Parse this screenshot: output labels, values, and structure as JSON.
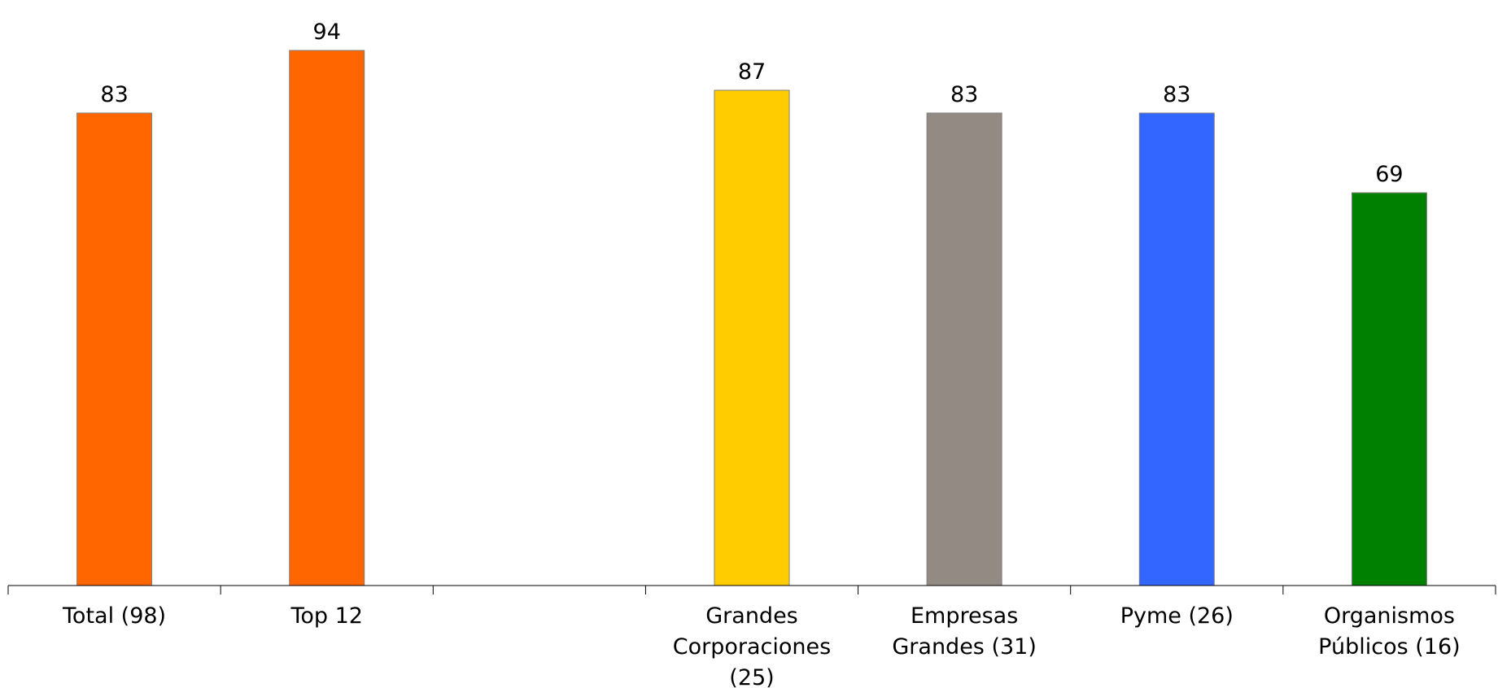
{
  "chart_data": {
    "type": "bar",
    "categories": [
      "Total  (98)",
      "Top 12",
      "",
      "Grandes Corporaciones (25)",
      "Empresas Grandes (31)",
      "Pyme (26)",
      "Organismos Públicos (16)"
    ],
    "category_lines": [
      [
        "Total  (98)"
      ],
      [
        "Top 12"
      ],
      [],
      [
        "Grandes",
        "Corporaciones",
        "(25)"
      ],
      [
        "Empresas",
        "Grandes (31)"
      ],
      [
        "Pyme (26)"
      ],
      [
        "Organismos",
        "Públicos (16)"
      ]
    ],
    "values": [
      83,
      94,
      null,
      87,
      83,
      83,
      69
    ],
    "colors": [
      "#ff6600",
      "#ff6600",
      null,
      "#ffcc00",
      "#948a84",
      "#3366ff",
      "#008000"
    ],
    "title": "",
    "xlabel": "",
    "ylabel": "",
    "ylim": [
      0,
      100
    ],
    "grid": false,
    "legend": "none",
    "data_labels": true
  }
}
